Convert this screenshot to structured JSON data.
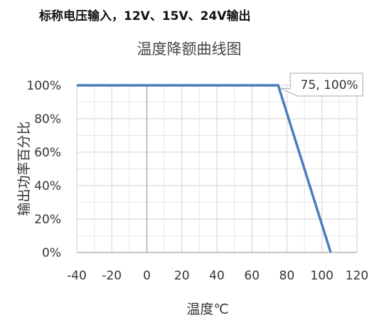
{
  "caption": "标称电压输入，12V、15V、24V输出",
  "chart_data": {
    "type": "line",
    "title": "温度降额曲线图",
    "xlabel": "温度℃",
    "ylabel": "输出功率百分比",
    "xlim": [
      -40,
      120
    ],
    "ylim": [
      0,
      100
    ],
    "x_ticks": [
      -40,
      -20,
      0,
      20,
      40,
      60,
      80,
      100,
      120
    ],
    "y_ticks": [
      0,
      20,
      40,
      60,
      80,
      100
    ],
    "y_tick_labels": [
      "0%",
      "20%",
      "40%",
      "60%",
      "80%",
      "100%"
    ],
    "grid": true,
    "series": [
      {
        "x": [
          -40,
          75,
          105
        ],
        "y": [
          100,
          100,
          0
        ],
        "color": "#4a7ebb"
      }
    ],
    "annotation": {
      "text": "75, 100%",
      "x": 75,
      "y": 100
    }
  }
}
